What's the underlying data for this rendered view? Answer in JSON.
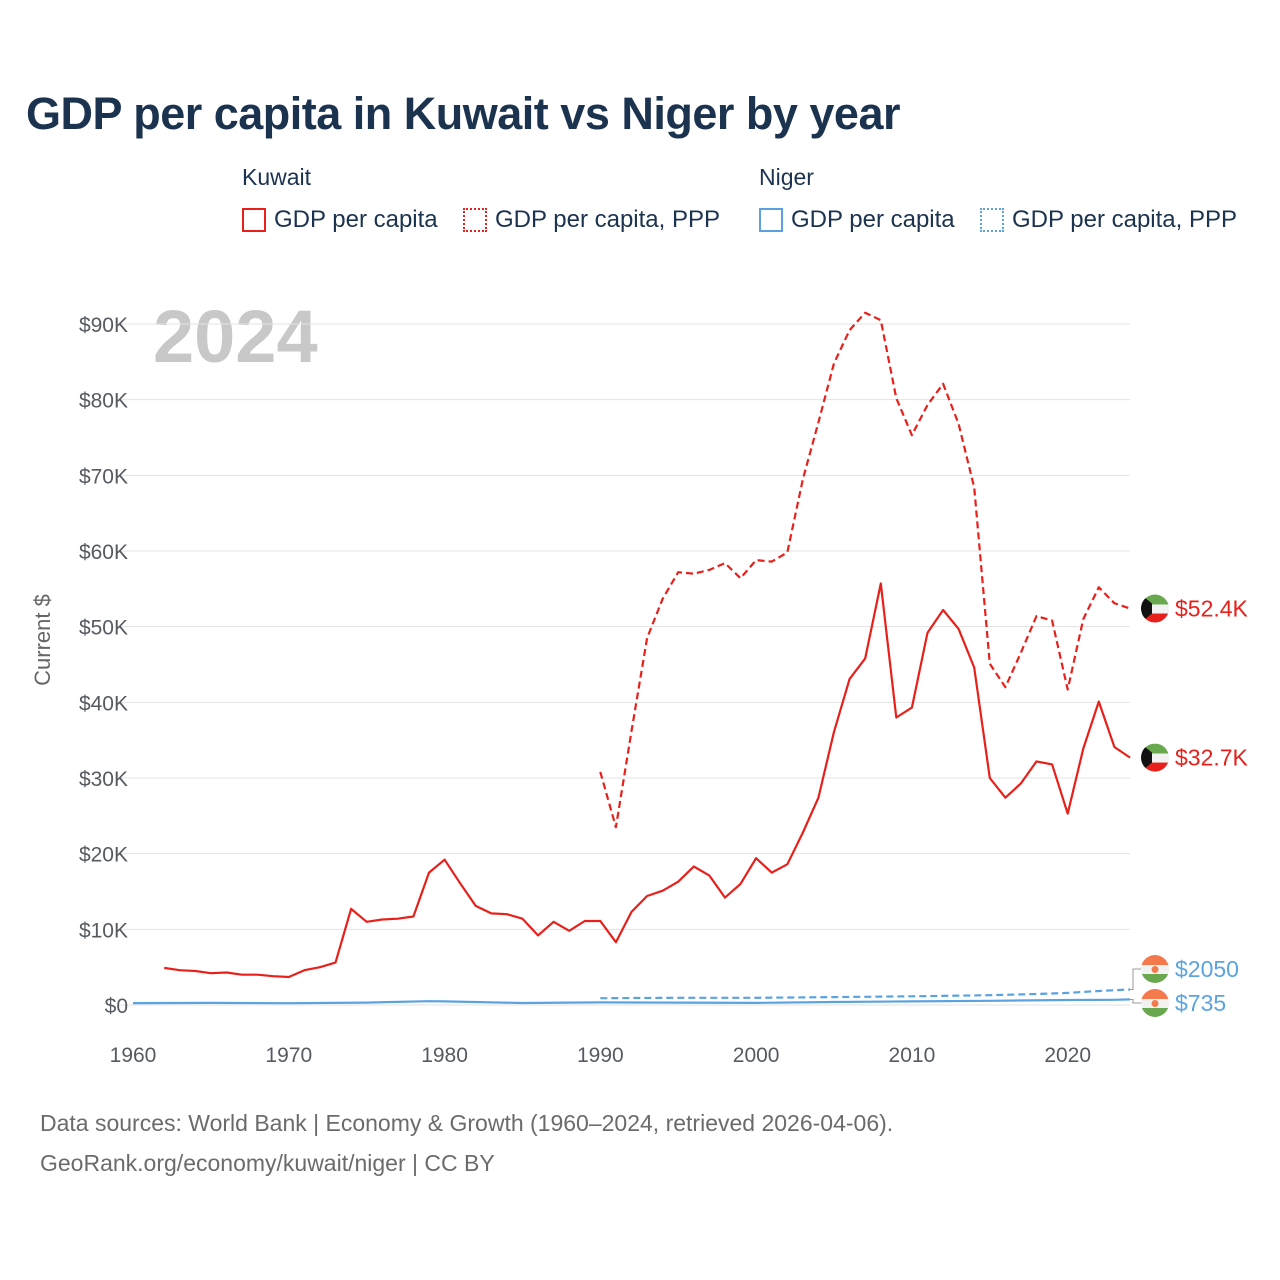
{
  "title": "GDP per capita in Kuwait vs Niger by year",
  "legend": {
    "groups": [
      {
        "country": "Kuwait",
        "color": "#e8201b",
        "items": [
          {
            "label": "GDP per capita",
            "style": "solid"
          },
          {
            "label": "GDP per capita, PPP",
            "style": "dotted"
          }
        ]
      },
      {
        "country": "Niger",
        "color": "#5ba3e0",
        "items": [
          {
            "label": "GDP per capita",
            "style": "solid"
          },
          {
            "label": "GDP per capita, PPP",
            "style": "dotted"
          }
        ]
      }
    ]
  },
  "year_display": "2024",
  "end_labels": {
    "kuwait_ppp": "$52.4K",
    "kuwait_gdp": "$32.7K",
    "niger_ppp": "$2050",
    "niger_gdp": "$735"
  },
  "footer": {
    "line1": "Data sources: World Bank | Economy & Growth (1960–2024, retrieved 2026-04-06).",
    "line2": "GeoRank.org/economy/kuwait/niger | CC BY"
  },
  "chart_data": {
    "type": "line",
    "ylabel": "Current $",
    "xlabel": "",
    "xlim": [
      1960,
      2024
    ],
    "ylim": [
      0,
      90000
    ],
    "x_ticks": [
      1960,
      1970,
      1980,
      1990,
      2000,
      2010,
      2020
    ],
    "y_ticks": [
      0,
      10000,
      20000,
      30000,
      40000,
      50000,
      60000,
      70000,
      80000,
      90000
    ],
    "y_tick_labels": [
      "$0",
      "$10K",
      "$20K",
      "$30K",
      "$40K",
      "$50K",
      "$60K",
      "$70K",
      "$80K",
      "$90K"
    ],
    "grid": true,
    "series": [
      {
        "name": "Kuwait GDP per capita",
        "country": "Kuwait",
        "style": "solid",
        "color": "#e8201b",
        "x": [
          1962,
          1963,
          1964,
          1965,
          1966,
          1967,
          1968,
          1969,
          1970,
          1971,
          1972,
          1973,
          1974,
          1975,
          1976,
          1977,
          1978,
          1979,
          1980,
          1981,
          1982,
          1983,
          1984,
          1985,
          1986,
          1987,
          1988,
          1989,
          1990,
          1991,
          1992,
          1993,
          1994,
          1995,
          1996,
          1997,
          1998,
          1999,
          2000,
          2001,
          2002,
          2003,
          2004,
          2005,
          2006,
          2007,
          2008,
          2009,
          2010,
          2011,
          2012,
          2013,
          2014,
          2015,
          2016,
          2017,
          2018,
          2019,
          2020,
          2021,
          2022,
          2023,
          2024
        ],
        "values": [
          4900,
          4600,
          4500,
          4200,
          4300,
          4000,
          4000,
          3800,
          3700,
          4600,
          5000,
          5600,
          12700,
          11000,
          11300,
          11400,
          11700,
          17500,
          19200,
          16100,
          13100,
          12100,
          12000,
          11400,
          9200,
          11000,
          9800,
          11100,
          11100,
          8300,
          12300,
          14400,
          15100,
          16300,
          18300,
          17100,
          14200,
          16000,
          19400,
          17500,
          18600,
          22800,
          27400,
          36100,
          43100,
          45800,
          55700,
          38000,
          39300,
          49200,
          52200,
          49700,
          44600,
          30000,
          27400,
          29300,
          32200,
          31800,
          25300,
          33900,
          40100,
          34100,
          32700
        ]
      },
      {
        "name": "Kuwait GDP per capita, PPP",
        "country": "Kuwait",
        "style": "dashed",
        "color": "#e8201b",
        "x": [
          1990,
          1991,
          1992,
          1993,
          1994,
          1995,
          1996,
          1997,
          1998,
          1999,
          2000,
          2001,
          2002,
          2003,
          2004,
          2005,
          2006,
          2007,
          2008,
          2009,
          2010,
          2011,
          2012,
          2013,
          2014,
          2015,
          2016,
          2017,
          2018,
          2019,
          2020,
          2021,
          2022,
          2023,
          2024
        ],
        "values": [
          30800,
          23500,
          36200,
          48500,
          53700,
          57200,
          57000,
          57500,
          58400,
          56400,
          58800,
          58600,
          59800,
          69500,
          77000,
          84800,
          89200,
          91500,
          90500,
          80200,
          75300,
          79300,
          82100,
          76800,
          68400,
          45100,
          42000,
          46600,
          51400,
          50800,
          41700,
          51000,
          55200,
          53100,
          52400
        ]
      },
      {
        "name": "Niger GDP per capita",
        "country": "Niger",
        "style": "solid",
        "color": "#5ba3e0",
        "x": [
          1960,
          1965,
          1970,
          1975,
          1979,
          1980,
          1985,
          1990,
          1995,
          2000,
          2005,
          2010,
          2015,
          2020,
          2023,
          2024
        ],
        "values": [
          250,
          280,
          240,
          320,
          500,
          480,
          270,
          350,
          320,
          280,
          400,
          480,
          560,
          660,
          690,
          735
        ]
      },
      {
        "name": "Niger GDP per capita, PPP",
        "country": "Niger",
        "style": "dashed",
        "color": "#5ba3e0",
        "x": [
          1990,
          1995,
          2000,
          2005,
          2010,
          2015,
          2018,
          2020,
          2022,
          2024
        ],
        "values": [
          900,
          950,
          950,
          1050,
          1150,
          1300,
          1450,
          1600,
          1850,
          2050
        ]
      }
    ]
  }
}
